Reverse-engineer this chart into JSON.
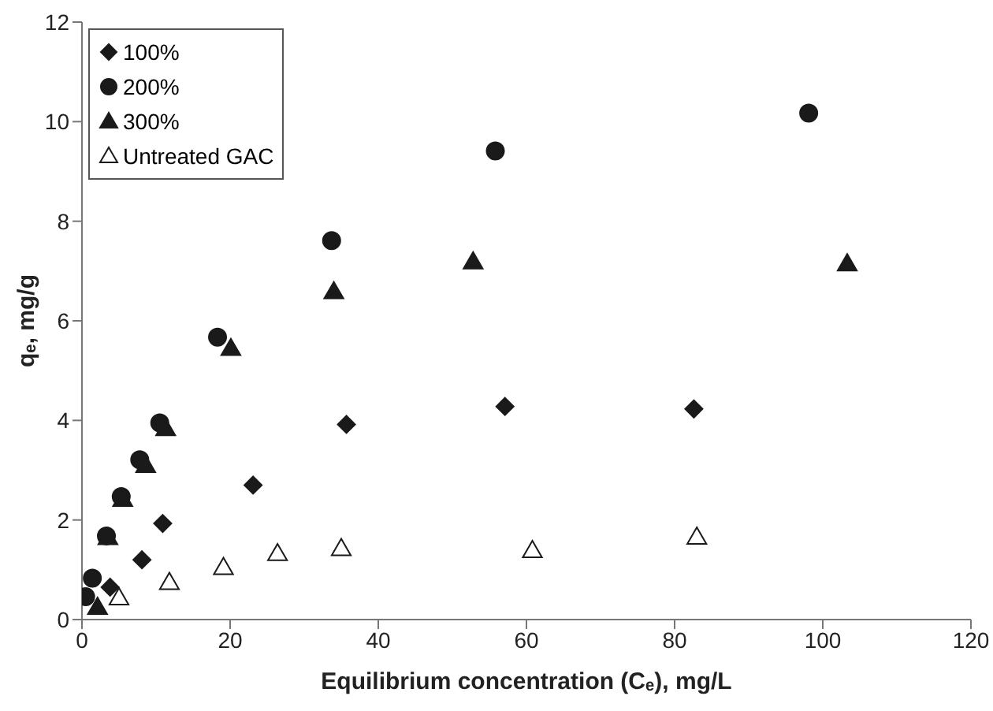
{
  "chart_data": {
    "type": "scatter",
    "xlabel": "Equilibrium concentration (Cₑ), mg/L",
    "ylabel": "qₑ, mg/g",
    "xlim": [
      0,
      120
    ],
    "xticks": [
      0,
      20,
      40,
      60,
      80,
      100,
      120
    ],
    "ylim": [
      0,
      12
    ],
    "yticks": [
      0,
      2,
      4,
      6,
      8,
      10,
      12
    ],
    "grid": false,
    "legend": "top left",
    "series": [
      {
        "name": "100%",
        "color": "#1a1a1a",
        "marker": "diamond",
        "x": [
          3.8,
          8.1,
          10.9,
          23.1,
          35.7,
          57.1,
          82.6
        ],
        "values": [
          0.65,
          1.2,
          1.93,
          2.7,
          3.92,
          4.28,
          4.23
        ]
      },
      {
        "name": "200%",
        "color": "#1a1a1a",
        "marker": "circle",
        "x": [
          0.5,
          1.4,
          3.3,
          5.3,
          7.8,
          10.5,
          18.3,
          33.7,
          55.8,
          98.1
        ],
        "values": [
          0.46,
          0.83,
          1.68,
          2.47,
          3.21,
          3.95,
          5.67,
          7.61,
          9.41,
          10.17
        ]
      },
      {
        "name": "300%",
        "color": "#1a1a1a",
        "marker": "triangle",
        "x": [
          2.1,
          3.5,
          5.5,
          8.6,
          11.3,
          20.1,
          34,
          52.8,
          103.3
        ],
        "values": [
          0.25,
          1.65,
          2.42,
          3.1,
          3.84,
          5.45,
          6.59,
          7.19,
          7.15
        ]
      },
      {
        "name": "Untreated GAC",
        "color": "#ffffff",
        "marker": "triangle",
        "x": [
          5,
          11.8,
          19.1,
          26.4,
          35,
          60.8,
          83
        ],
        "values": [
          0.44,
          0.75,
          1.05,
          1.33,
          1.43,
          1.39,
          1.66
        ]
      }
    ]
  }
}
